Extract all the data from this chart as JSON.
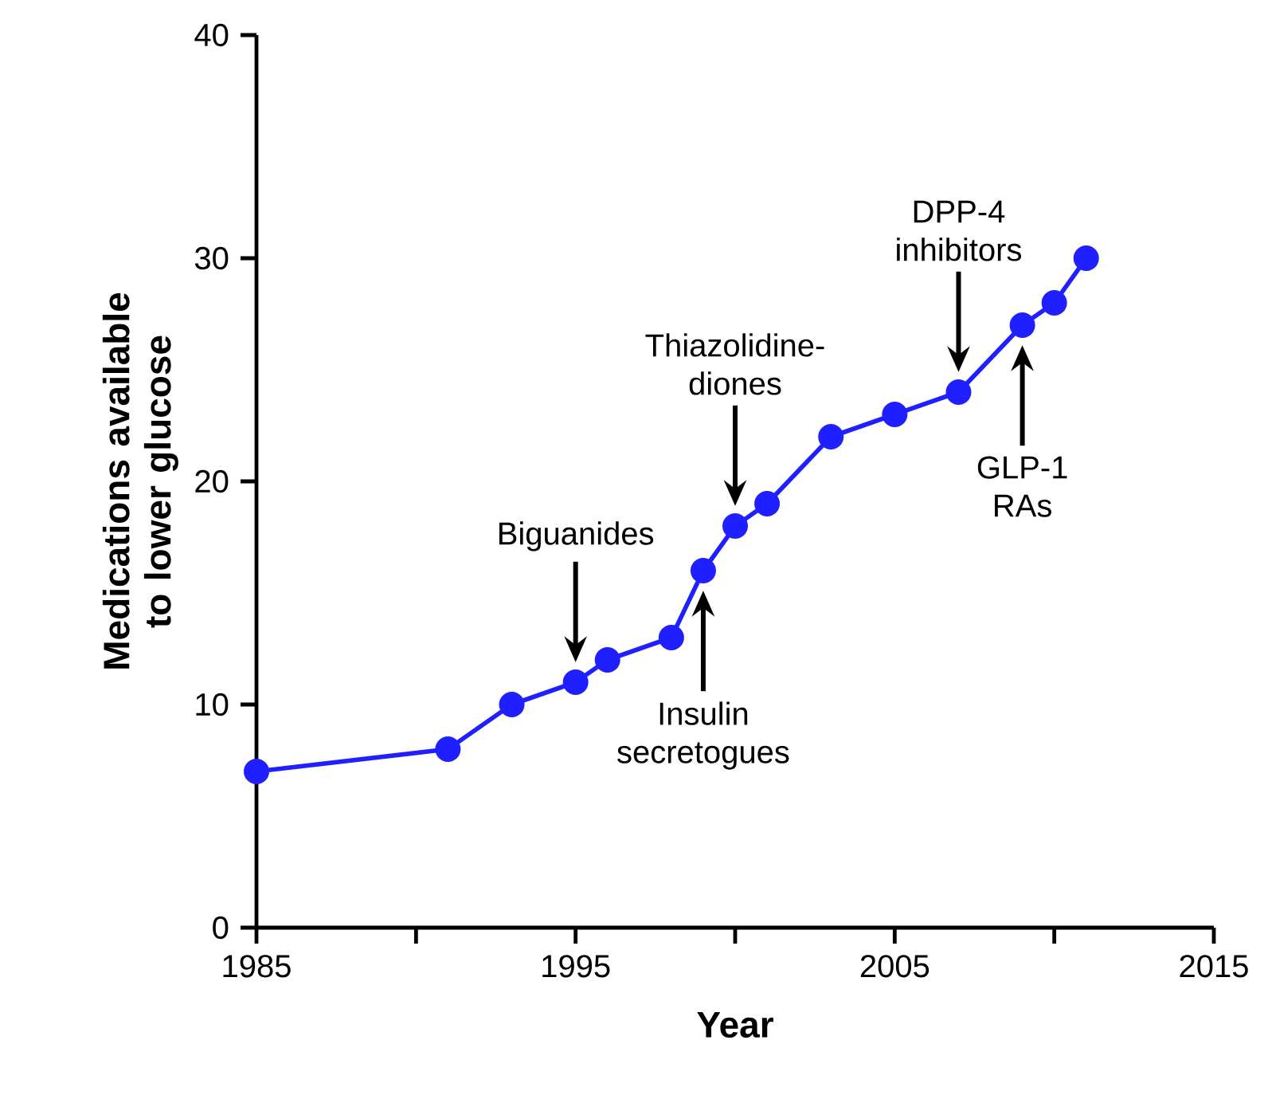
{
  "chart_data": {
    "type": "line",
    "xlabel": "Year",
    "ylabel": "Medications available to lower glucose",
    "x": [
      1985,
      1991,
      1993,
      1995,
      1996,
      1998,
      1999,
      2000,
      2001,
      2003,
      2005,
      2007,
      2009,
      2010,
      2011
    ],
    "values": [
      7,
      8,
      10,
      11,
      12,
      13,
      16,
      18,
      19,
      22,
      23,
      24,
      27,
      28,
      30
    ],
    "color": "#1f1fff",
    "marker": "circle",
    "line_style": "solid",
    "grid": false,
    "xlim": [
      1985,
      2015
    ],
    "xticks": [
      1985,
      {
        "value": 1990,
        "label": null
      },
      1995,
      {
        "value": 2000,
        "label": null
      },
      2005,
      {
        "value": 2010,
        "label": null
      },
      2015
    ],
    "ylim": [
      0,
      40
    ],
    "yticks": [
      0,
      10,
      20,
      30,
      40
    ],
    "annotations": [
      "Biguanides",
      "Insulin secretogues",
      "Thiazolidine-diones",
      "DPP-4 inhibitors",
      "GLP-1 RAs"
    ]
  }
}
